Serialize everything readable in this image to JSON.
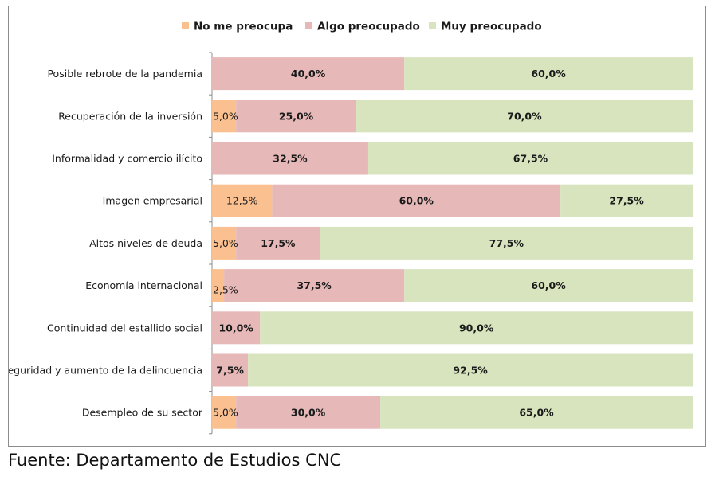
{
  "chart_data": {
    "type": "bar",
    "orientation": "horizontal",
    "stacked": true,
    "percent_stacked": true,
    "legend_position": "top",
    "categories": [
      "Posible rebrote de la pandemia",
      "Recuperación de la inversión",
      "Informalidad y comercio ilícito",
      "Imagen empresarial",
      "Altos niveles de deuda",
      "Economía internacional",
      "Continuidad del estallido social",
      "Seguridad y aumento de la delincuencia",
      "Desempleo de su sector"
    ],
    "series": [
      {
        "name": "No me preocupa",
        "color": "#fac090",
        "values": [
          0,
          5.0,
          0,
          12.5,
          5.0,
          2.5,
          0,
          0,
          5.0
        ],
        "labels": [
          "",
          "5,0%",
          "",
          "12,5%",
          "5,0%",
          "2,5%",
          "",
          "",
          "5,0%"
        ]
      },
      {
        "name": "Algo preocupado",
        "color": "#e6b9b8",
        "values": [
          40.0,
          25.0,
          32.5,
          60.0,
          17.5,
          37.5,
          10.0,
          7.5,
          30.0
        ],
        "labels": [
          "40,0%",
          "25,0%",
          "32,5%",
          "60,0%",
          "17,5%",
          "37,5%",
          "10,0%",
          "7,5%",
          "30,0%"
        ]
      },
      {
        "name": "Muy preocupado",
        "color": "#d7e4bd",
        "values": [
          60.0,
          70.0,
          67.5,
          27.5,
          77.5,
          60.0,
          90.0,
          92.5,
          65.0
        ],
        "labels": [
          "60,0%",
          "70,0%",
          "67,5%",
          "27,5%",
          "77,5%",
          "60,0%",
          "90,0%",
          "92,5%",
          "65,0%"
        ]
      }
    ],
    "xlim": [
      0,
      100
    ]
  },
  "source_note": "Fuente: Departamento de Estudios CNC"
}
